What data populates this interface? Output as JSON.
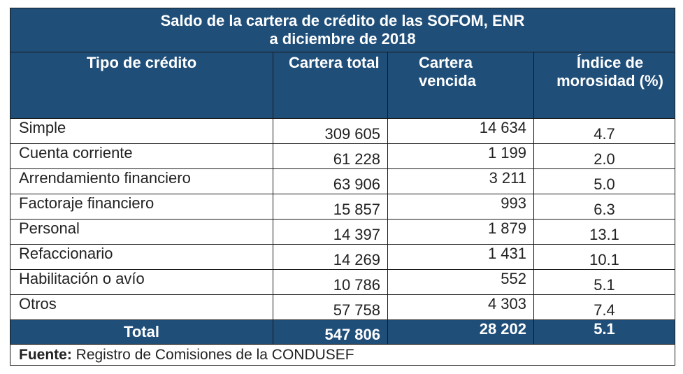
{
  "title_line1": "Saldo de la cartera de crédito de las SOFOM, ENR",
  "title_line2": "a diciembre de 2018",
  "headers": [
    "Tipo de crédito",
    "Cartera total",
    "Cartera vencida",
    "Índice de morosidad (%)"
  ],
  "rows": [
    {
      "tipo": "Simple",
      "total": "309 605",
      "vencida": "14 634",
      "indice": "4.7"
    },
    {
      "tipo": "Cuenta corriente",
      "total": "61 228",
      "vencida": "1 199",
      "indice": "2.0"
    },
    {
      "tipo": "Arrendamiento financiero",
      "total": "63 906",
      "vencida": "3 211",
      "indice": "5.0"
    },
    {
      "tipo": "Factoraje financiero",
      "total": "15 857",
      "vencida": "993",
      "indice": "6.3"
    },
    {
      "tipo": "Personal",
      "total": "14 397",
      "vencida": "1 879",
      "indice": "13.1"
    },
    {
      "tipo": "Refaccionario",
      "total": "14 269",
      "vencida": "1 431",
      "indice": "10.1"
    },
    {
      "tipo": "Habilitación o avío",
      "total": "10 786",
      "vencida": "552",
      "indice": "5.1"
    },
    {
      "tipo": "Otros",
      "total": "57 758",
      "vencida": "4 303",
      "indice": "7.4"
    }
  ],
  "total": {
    "tipo": "Total",
    "total": "547 806",
    "vencida": "28 202",
    "indice": "5.1"
  },
  "footer": {
    "label": "Fuente:",
    "text": " Registro de Comisiones de la CONDUSEF"
  },
  "colors": {
    "header_bg": "#1f4e79",
    "header_text": "#ffffff"
  }
}
